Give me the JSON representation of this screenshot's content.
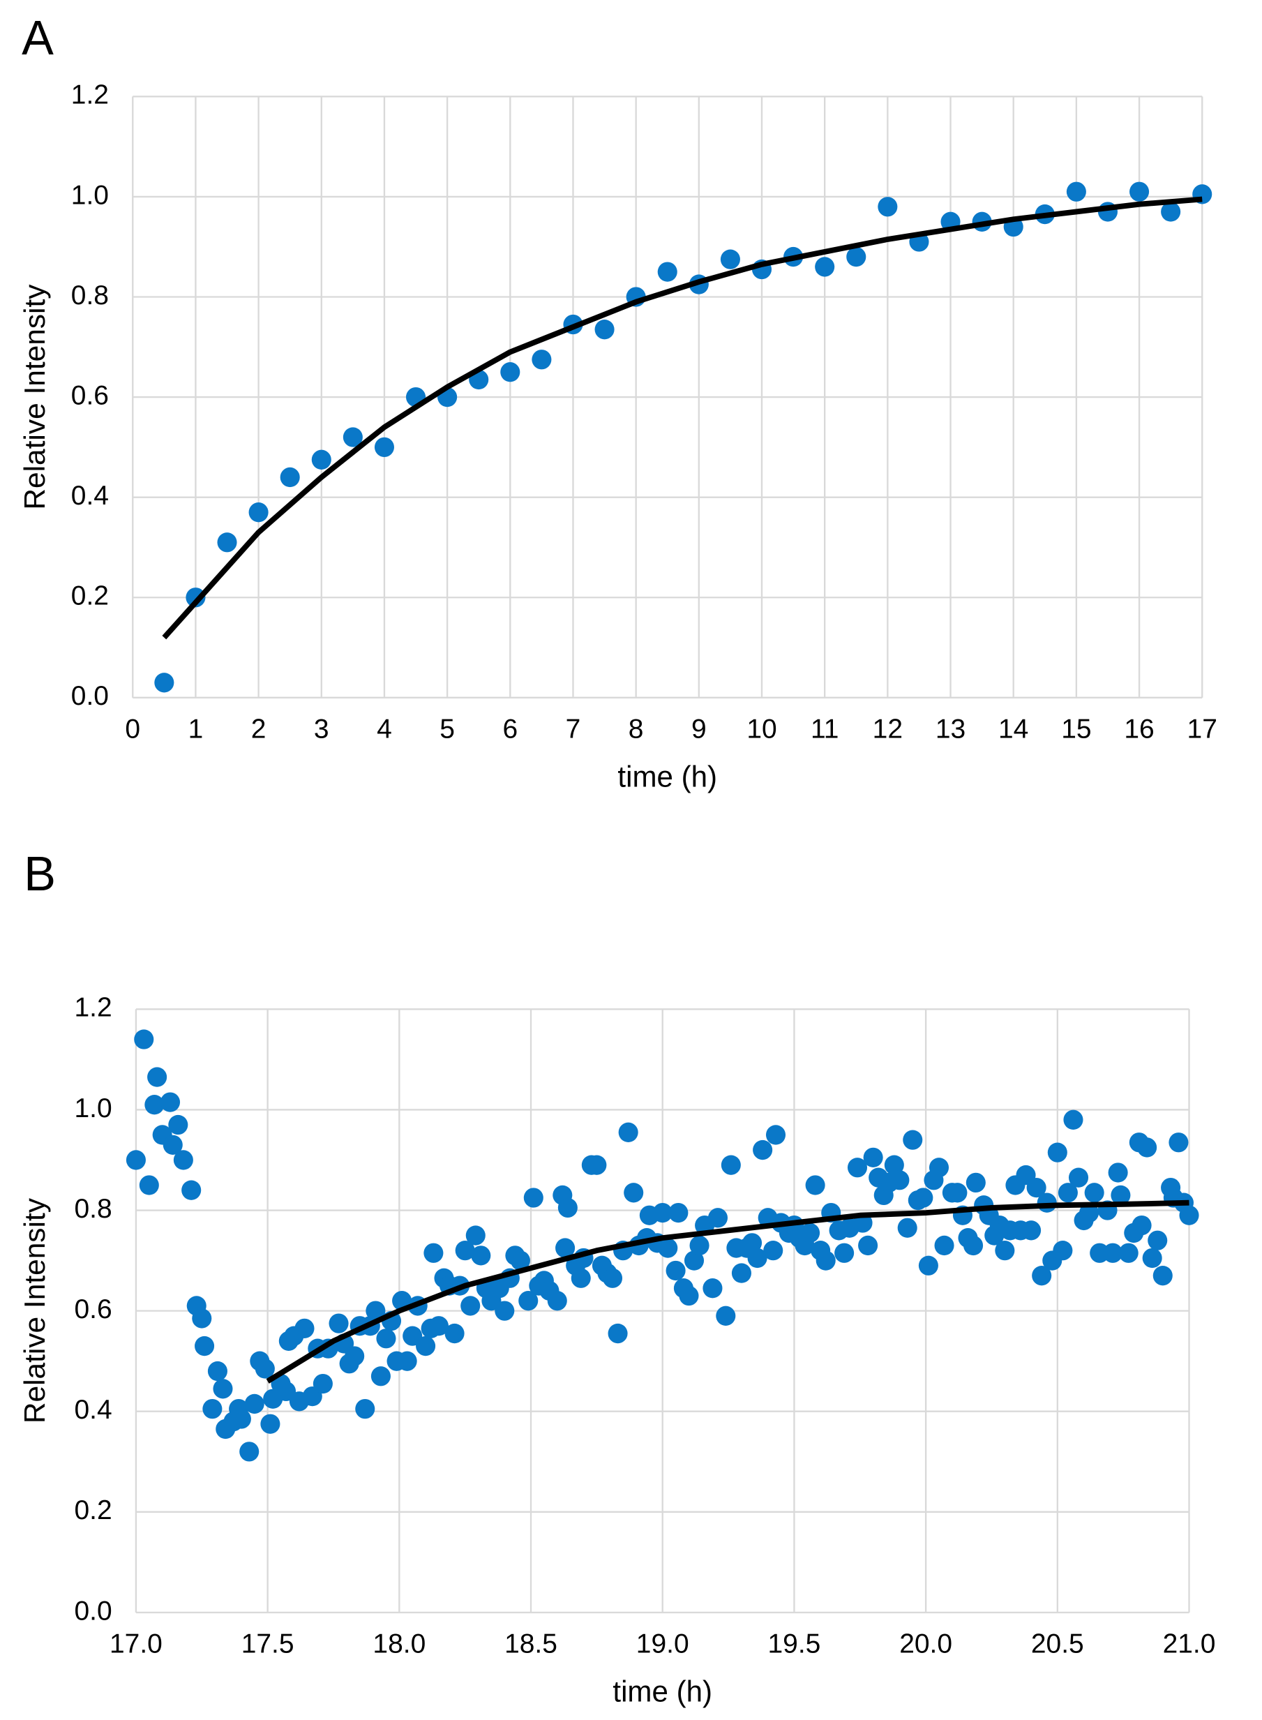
{
  "chart_data": [
    {
      "type": "scatter",
      "panel_label": "A",
      "xlabel": "time  (h)",
      "ylabel": "Relative Intensity",
      "xlim": [
        0,
        17
      ],
      "ylim": [
        0,
        1.2
      ],
      "xticks": [
        0,
        1,
        2,
        3,
        4,
        5,
        6,
        7,
        8,
        9,
        10,
        11,
        12,
        13,
        14,
        15,
        16,
        17
      ],
      "yticks": [
        {
          "value": 0,
          "label": "0.0"
        },
        0.2,
        0.4,
        0.6,
        0.8,
        {
          "value": 1,
          "label": "1.0"
        },
        1.2
      ],
      "grid": true,
      "series": [
        {
          "style": "markers",
          "color": "#0a78c8",
          "x": [
            0.5,
            1,
            1.5,
            2,
            2.5,
            3,
            3.5,
            4,
            4.5,
            5,
            5.5,
            6,
            6.5,
            7,
            7.5,
            8,
            8.5,
            9,
            9.5,
            10,
            10.5,
            11,
            11.5,
            12,
            12.5,
            13,
            13.5,
            14,
            14.5,
            15,
            15.5,
            16,
            16.5,
            17
          ],
          "values": [
            0.03,
            0.2,
            0.31,
            0.37,
            0.44,
            0.475,
            0.52,
            0.5,
            0.6,
            0.6,
            0.635,
            0.65,
            0.675,
            0.745,
            0.735,
            0.8,
            0.85,
            0.825,
            0.875,
            0.855,
            0.88,
            0.86,
            0.88,
            0.98,
            0.91,
            0.95,
            0.95,
            0.94,
            0.965,
            1.01,
            0.97,
            1.01,
            0.97,
            1.005
          ]
        },
        {
          "style": "line",
          "color": "#000000",
          "x": [
            0.5,
            1,
            2,
            3,
            4,
            5,
            6,
            7,
            8,
            9,
            10,
            11,
            12,
            13,
            14,
            15,
            16,
            17
          ],
          "values": [
            0.12,
            0.19,
            0.33,
            0.44,
            0.54,
            0.62,
            0.69,
            0.74,
            0.79,
            0.83,
            0.865,
            0.89,
            0.915,
            0.935,
            0.955,
            0.97,
            0.985,
            0.995
          ]
        }
      ]
    },
    {
      "type": "scatter",
      "panel_label": "B",
      "xlabel": "time (h)",
      "ylabel": "Relative Intensity",
      "xlim": [
        17,
        21
      ],
      "ylim": [
        0,
        1.2
      ],
      "xticks": [
        {
          "value": 17,
          "label": "17.0"
        },
        17.5,
        {
          "value": 18,
          "label": "18.0"
        },
        18.5,
        {
          "value": 19,
          "label": "19.0"
        },
        19.5,
        {
          "value": 20,
          "label": "20.0"
        },
        20.5,
        {
          "value": 21,
          "label": "21.0"
        }
      ],
      "yticks": [
        {
          "value": 0,
          "label": "0.0"
        },
        0.2,
        0.4,
        0.6,
        0.8,
        {
          "value": 1,
          "label": "1.0"
        },
        1.2
      ],
      "grid": true,
      "series": [
        {
          "style": "markers",
          "color": "#0a78c8",
          "x": [
            17.0,
            17.03,
            17.05,
            17.07,
            17.08,
            17.1,
            17.13,
            17.14,
            17.16,
            17.18,
            17.21,
            17.23,
            17.25,
            17.26,
            17.29,
            17.31,
            17.33,
            17.34,
            17.37,
            17.39,
            17.4,
            17.43,
            17.45,
            17.47,
            17.49,
            17.51,
            17.52,
            17.55,
            17.57,
            17.58,
            17.6,
            17.62,
            17.64,
            17.67,
            17.69,
            17.71,
            17.73,
            17.77,
            17.79,
            17.81,
            17.83,
            17.85,
            17.87,
            17.89,
            17.91,
            17.93,
            17.95,
            17.97,
            17.99,
            18.01,
            18.03,
            18.05,
            18.07,
            18.1,
            18.12,
            18.13,
            18.15,
            18.17,
            18.19,
            18.21,
            18.23,
            18.25,
            18.27,
            18.29,
            18.31,
            18.33,
            18.35,
            18.38,
            18.4,
            18.42,
            18.44,
            18.46,
            18.49,
            18.51,
            18.53,
            18.55,
            18.57,
            18.6,
            18.62,
            18.63,
            18.64,
            18.67,
            18.69,
            18.7,
            18.73,
            18.75,
            18.77,
            18.79,
            18.81,
            18.83,
            18.85,
            18.87,
            18.89,
            18.91,
            18.94,
            18.95,
            18.98,
            19.0,
            19.02,
            19.05,
            19.06,
            19.08,
            19.1,
            19.12,
            19.14,
            19.16,
            19.19,
            19.21,
            19.24,
            19.26,
            19.28,
            19.3,
            19.32,
            19.34,
            19.36,
            19.38,
            19.4,
            19.42,
            19.43,
            19.45,
            19.48,
            19.5,
            19.52,
            19.54,
            19.56,
            19.58,
            19.6,
            19.62,
            19.64,
            19.67,
            19.69,
            19.71,
            19.74,
            19.76,
            19.78,
            19.8,
            19.82,
            19.84,
            19.86,
            19.88,
            19.9,
            19.93,
            19.95,
            19.97,
            19.99,
            20.01,
            20.03,
            20.05,
            20.07,
            20.1,
            20.12,
            20.14,
            20.16,
            20.18,
            20.19,
            20.22,
            20.24,
            20.26,
            20.28,
            20.3,
            20.32,
            20.34,
            20.36,
            20.38,
            20.4,
            20.42,
            20.44,
            20.46,
            20.48,
            20.5,
            20.52,
            20.54,
            20.56,
            20.58,
            20.6,
            20.62,
            20.64,
            20.66,
            20.69,
            20.71,
            20.73,
            20.74,
            20.77,
            20.79,
            20.81,
            20.82,
            20.84,
            20.86,
            20.88,
            20.9,
            20.93,
            20.94,
            20.96,
            20.98,
            21.0
          ],
          "values": [
            0.9,
            1.14,
            0.85,
            1.01,
            1.065,
            0.95,
            1.015,
            0.93,
            0.97,
            0.9,
            0.84,
            0.61,
            0.585,
            0.53,
            0.405,
            0.48,
            0.445,
            0.365,
            0.38,
            0.405,
            0.385,
            0.32,
            0.415,
            0.5,
            0.485,
            0.375,
            0.425,
            0.455,
            0.44,
            0.54,
            0.55,
            0.42,
            0.565,
            0.43,
            0.525,
            0.455,
            0.525,
            0.575,
            0.535,
            0.495,
            0.51,
            0.57,
            0.405,
            0.57,
            0.6,
            0.47,
            0.545,
            0.58,
            0.5,
            0.62,
            0.5,
            0.55,
            0.61,
            0.53,
            0.565,
            0.715,
            0.57,
            0.665,
            0.65,
            0.555,
            0.65,
            0.72,
            0.61,
            0.75,
            0.71,
            0.645,
            0.62,
            0.645,
            0.6,
            0.665,
            0.71,
            0.7,
            0.62,
            0.825,
            0.65,
            0.66,
            0.64,
            0.62,
            0.83,
            0.725,
            0.805,
            0.69,
            0.665,
            0.705,
            0.89,
            0.89,
            0.69,
            0.675,
            0.665,
            0.555,
            0.72,
            0.955,
            0.835,
            0.73,
            0.745,
            0.79,
            0.735,
            0.795,
            0.725,
            0.68,
            0.795,
            0.645,
            0.63,
            0.7,
            0.73,
            0.77,
            0.645,
            0.785,
            0.59,
            0.89,
            0.725,
            0.675,
            0.725,
            0.735,
            0.705,
            0.92,
            0.785,
            0.72,
            0.95,
            0.775,
            0.755,
            0.77,
            0.745,
            0.73,
            0.755,
            0.85,
            0.72,
            0.7,
            0.795,
            0.76,
            0.715,
            0.765,
            0.885,
            0.775,
            0.73,
            0.905,
            0.865,
            0.83,
            0.855,
            0.89,
            0.86,
            0.765,
            0.94,
            0.82,
            0.825,
            0.69,
            0.86,
            0.885,
            0.73,
            0.835,
            0.835,
            0.79,
            0.745,
            0.73,
            0.855,
            0.81,
            0.79,
            0.75,
            0.77,
            0.72,
            0.76,
            0.85,
            0.76,
            0.87,
            0.76,
            0.845,
            0.67,
            0.815,
            0.7,
            0.915,
            0.72,
            0.835,
            0.98,
            0.865,
            0.78,
            0.795,
            0.835,
            0.715,
            0.8,
            0.715,
            0.875,
            0.83,
            0.715,
            0.755,
            0.935,
            0.77,
            0.925,
            0.705,
            0.74,
            0.67,
            0.845,
            0.825,
            0.935,
            0.815,
            0.79
          ]
        },
        {
          "style": "line",
          "color": "#000000",
          "x": [
            17.5,
            17.75,
            18,
            18.25,
            18.5,
            18.75,
            19,
            19.25,
            19.5,
            19.75,
            20,
            20.25,
            20.5,
            20.75,
            21
          ],
          "values": [
            0.46,
            0.54,
            0.6,
            0.65,
            0.685,
            0.72,
            0.745,
            0.76,
            0.775,
            0.79,
            0.795,
            0.805,
            0.81,
            0.812,
            0.815
          ]
        }
      ]
    }
  ]
}
